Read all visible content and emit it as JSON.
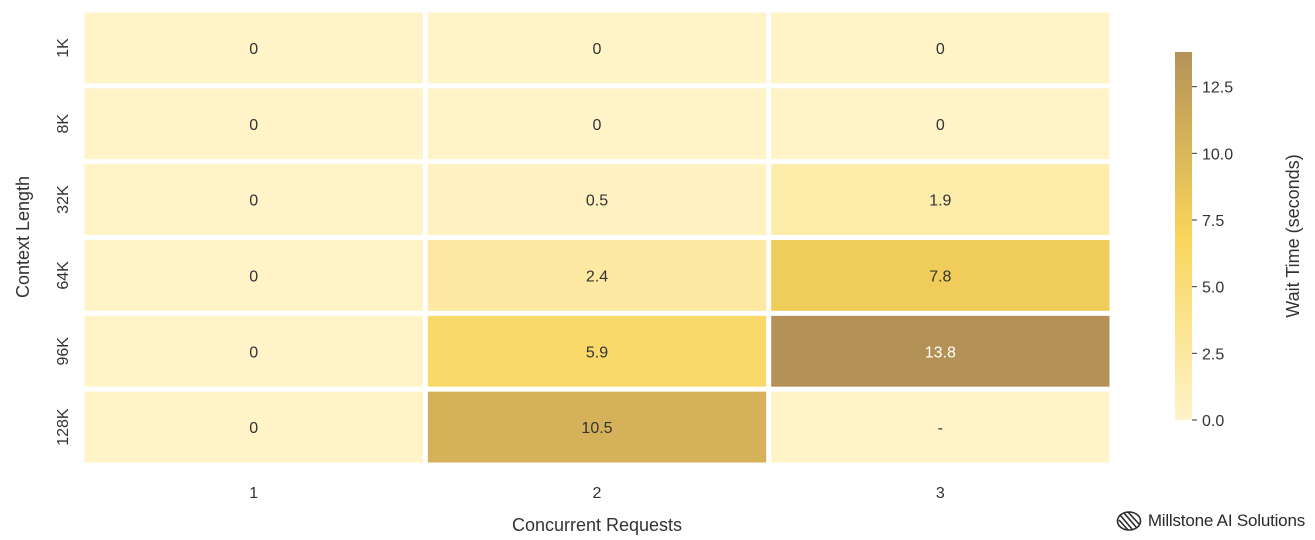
{
  "chart_data": {
    "type": "heatmap",
    "x_categories": [
      "1",
      "2",
      "3"
    ],
    "y_categories": [
      "1K",
      "8K",
      "32K",
      "64K",
      "96K",
      "128K"
    ],
    "values": [
      [
        0,
        0,
        0
      ],
      [
        0,
        0,
        0
      ],
      [
        0,
        0.5,
        1.9
      ],
      [
        0,
        2.4,
        7.8
      ],
      [
        0,
        5.9,
        13.8
      ],
      [
        0,
        10.5,
        null
      ]
    ],
    "cell_labels": [
      [
        "0",
        "0",
        "0"
      ],
      [
        "0",
        "0",
        "0"
      ],
      [
        "0",
        "0.5",
        "1.9"
      ],
      [
        "0",
        "2.4",
        "7.8"
      ],
      [
        "0",
        "5.9",
        "13.8"
      ],
      [
        "0",
        "10.5",
        "-"
      ]
    ],
    "xlabel": "Concurrent Requests",
    "ylabel": "Context Length",
    "colorbar": {
      "label": "Wait Time (seconds)",
      "range": [
        0,
        13.8
      ],
      "ticks": [
        "0.0",
        "2.5",
        "5.0",
        "7.5",
        "10.0",
        "12.5"
      ]
    },
    "colormap": [
      "#fff3c8",
      "#f9d55b",
      "#b49257"
    ],
    "missing_color": "#fff3c8",
    "grid": false
  },
  "brand": {
    "name": "Millstone AI Solutions",
    "logo_icon": "millstone-logo-icon"
  }
}
